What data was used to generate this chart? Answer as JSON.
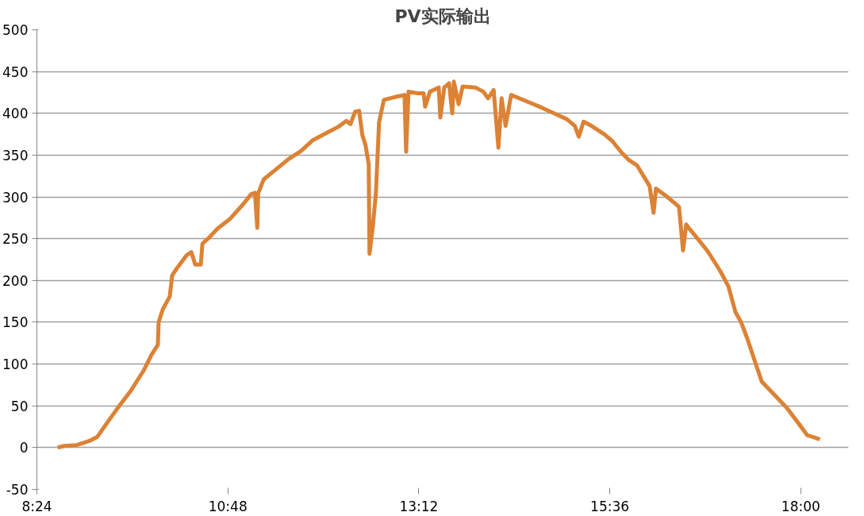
{
  "chart_data": {
    "type": "line",
    "title": "PV实际输出",
    "x": [
      8.66,
      8.74,
      8.9,
      9.06,
      9.16,
      9.27,
      9.42,
      9.58,
      9.74,
      9.84,
      9.92,
      9.93,
      9.98,
      10.07,
      10.1,
      10.17,
      10.28,
      10.34,
      10.39,
      10.46,
      10.48,
      10.55,
      10.67,
      10.83,
      10.99,
      11.09,
      11.14,
      11.17,
      11.18,
      11.25,
      11.38,
      11.56,
      11.72,
      11.87,
      12.03,
      12.19,
      12.29,
      12.34,
      12.4,
      12.45,
      12.49,
      12.53,
      12.57,
      12.58,
      12.62,
      12.66,
      12.7,
      12.76,
      12.92,
      13.02,
      13.04,
      13.07,
      13.18,
      13.26,
      13.28,
      13.34,
      13.45,
      13.47,
      13.52,
      13.58,
      13.62,
      13.64,
      13.7,
      13.75,
      13.91,
      14.01,
      14.07,
      14.14,
      14.2,
      14.24,
      14.29,
      14.36,
      14.54,
      14.74,
      14.9,
      15.06,
      15.16,
      15.21,
      15.27,
      15.37,
      15.53,
      15.63,
      15.74,
      15.84,
      15.94,
      16.1,
      16.15,
      16.18,
      16.31,
      16.41,
      16.47,
      16.52,
      16.56,
      16.6,
      16.73,
      16.83,
      16.99,
      17.09,
      17.18,
      17.25,
      17.33,
      17.41,
      17.51,
      17.67,
      17.82,
      17.98,
      18.08,
      18.24
    ],
    "series": [
      {
        "color": "#dc8235",
        "values": [
          0,
          2,
          3,
          8,
          13,
          28,
          48,
          68,
          92,
          111,
          123,
          150,
          165,
          181,
          206,
          216,
          230,
          234,
          219,
          219,
          244,
          250,
          262,
          274,
          291,
          303,
          305,
          263,
          304,
          321,
          331,
          345,
          355,
          368,
          376,
          384,
          391,
          387,
          402,
          403,
          374,
          362,
          339,
          232,
          263,
          304,
          389,
          416,
          420,
          422,
          354,
          426,
          424,
          424,
          408,
          426,
          431,
          395,
          431,
          436,
          400,
          438,
          411,
          432,
          431,
          426,
          418,
          428,
          359,
          418,
          385,
          422,
          415,
          407,
          400,
          393,
          385,
          372,
          390,
          385,
          375,
          367,
          354,
          344,
          338,
          313,
          281,
          310,
          301,
          293,
          288,
          236,
          267,
          262,
          247,
          235,
          211,
          193,
          162,
          150,
          130,
          107,
          79,
          63,
          48,
          28,
          15,
          10
        ]
      }
    ],
    "xlim": [
      8.4,
      18.6
    ],
    "xticks": [
      {
        "value": 8.4,
        "label": "8:24"
      },
      {
        "value": 10.8,
        "label": "10:48"
      },
      {
        "value": 13.2,
        "label": "13:12"
      },
      {
        "value": 15.6,
        "label": "15:36"
      },
      {
        "value": 18.0,
        "label": "18:00"
      }
    ],
    "ylim": [
      -50,
      500
    ],
    "yticks": [
      -50,
      0,
      50,
      100,
      150,
      200,
      250,
      300,
      350,
      400,
      450,
      500
    ],
    "grid": "y",
    "line_style": "solid",
    "marker": "none"
  }
}
